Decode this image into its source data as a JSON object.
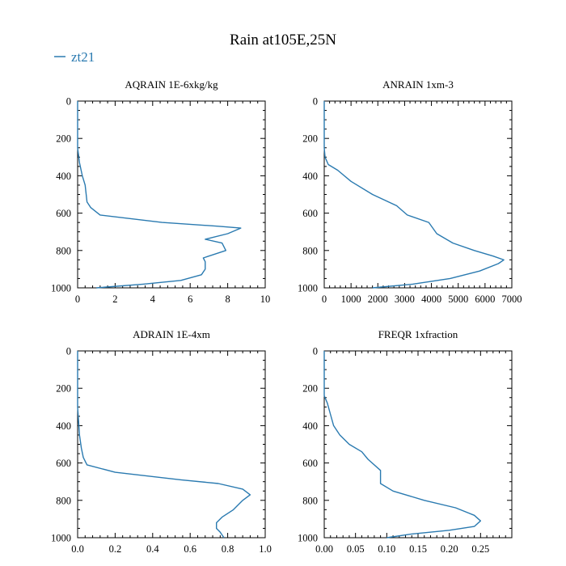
{
  "title": "Rain at105E,25N",
  "legend": {
    "label": "zt21",
    "color": "#2a7ab0"
  },
  "colors": {
    "line": "#2a7ab0",
    "axis": "#000000",
    "background": "#ffffff"
  },
  "chart_data": [
    {
      "type": "line",
      "title": "AQRAIN  1E-6xkg/kg",
      "xlim": [
        0,
        10
      ],
      "ylim": [
        1000,
        0
      ],
      "xticks": [
        0,
        2,
        4,
        6,
        8,
        10
      ],
      "xtick_labels": [
        "0",
        "2",
        "4",
        "6",
        "8",
        "10"
      ],
      "yticks": [
        0,
        200,
        400,
        600,
        800,
        1000
      ],
      "ytick_labels": [
        "0",
        "200",
        "400",
        "600",
        "800",
        "1000"
      ],
      "series": [
        {
          "name": "zt21",
          "x": [
            0,
            0,
            0.1,
            0.25,
            0.4,
            0.5,
            0.7,
            1.2,
            4.5,
            7.5,
            8.7,
            8.0,
            6.8,
            7.7,
            7.9,
            6.7,
            6.8,
            6.8,
            6.6,
            5.5,
            3.5,
            1.0
          ],
          "y": [
            0,
            250,
            330,
            400,
            450,
            540,
            570,
            610,
            650,
            670,
            680,
            710,
            740,
            760,
            800,
            840,
            860,
            900,
            930,
            960,
            980,
            1000
          ]
        }
      ]
    },
    {
      "type": "line",
      "title": "ANRAIN  1xm-3",
      "xlim": [
        0,
        7000
      ],
      "ylim": [
        1000,
        0
      ],
      "xticks": [
        0,
        1000,
        2000,
        3000,
        4000,
        5000,
        6000,
        7000
      ],
      "xtick_labels": [
        "0",
        "1000",
        "2000",
        "3000",
        "4000",
        "5000",
        "6000",
        "7000"
      ],
      "yticks": [
        0,
        200,
        400,
        600,
        800,
        1000
      ],
      "ytick_labels": [
        "0",
        "200",
        "400",
        "600",
        "800",
        "1000"
      ],
      "series": [
        {
          "name": "zt21",
          "x": [
            0,
            0,
            30,
            150,
            500,
            1000,
            1800,
            2700,
            3100,
            3900,
            4200,
            4800,
            5600,
            6300,
            6700,
            6500,
            5800,
            4700,
            3300,
            1800
          ],
          "y": [
            0,
            250,
            300,
            340,
            370,
            430,
            500,
            560,
            610,
            650,
            710,
            760,
            800,
            830,
            850,
            870,
            910,
            950,
            980,
            1000
          ]
        }
      ]
    },
    {
      "type": "line",
      "title": "ADRAIN  1E-4xm",
      "xlim": [
        0,
        1.0
      ],
      "ylim": [
        1000,
        0
      ],
      "xticks": [
        0,
        0.2,
        0.4,
        0.6,
        0.8,
        1.0
      ],
      "xtick_labels": [
        "0.0",
        "0.2",
        "0.4",
        "0.6",
        "0.8",
        "1.0"
      ],
      "yticks": [
        0,
        200,
        400,
        600,
        800,
        1000
      ],
      "ytick_labels": [
        "0",
        "200",
        "400",
        "600",
        "800",
        "1000"
      ],
      "series": [
        {
          "name": "zt21",
          "x": [
            0,
            0,
            0.01,
            0.02,
            0.03,
            0.05,
            0.2,
            0.55,
            0.75,
            0.88,
            0.92,
            0.88,
            0.83,
            0.77,
            0.74,
            0.74,
            0.76,
            0.78
          ],
          "y": [
            0,
            300,
            450,
            520,
            570,
            610,
            650,
            690,
            710,
            740,
            770,
            800,
            850,
            890,
            920,
            950,
            970,
            1000
          ]
        }
      ]
    },
    {
      "type": "line",
      "title": "FREQR  1xfraction",
      "xlim": [
        0,
        0.3
      ],
      "ylim": [
        1000,
        0
      ],
      "xticks": [
        0,
        0.05,
        0.1,
        0.15,
        0.2,
        0.25
      ],
      "xtick_labels": [
        "0.00",
        "0.05",
        "0.10",
        "0.15",
        "0.20",
        "0.25"
      ],
      "yticks": [
        0,
        200,
        400,
        600,
        800,
        1000
      ],
      "ytick_labels": [
        "0",
        "200",
        "400",
        "600",
        "800",
        "1000"
      ],
      "series": [
        {
          "name": "zt21",
          "x": [
            0,
            0,
            0.005,
            0.01,
            0.015,
            0.025,
            0.04,
            0.06,
            0.07,
            0.09,
            0.09,
            0.11,
            0.16,
            0.21,
            0.24,
            0.25,
            0.24,
            0.2,
            0.14,
            0.1
          ],
          "y": [
            0,
            240,
            280,
            340,
            400,
            450,
            500,
            540,
            580,
            640,
            710,
            750,
            800,
            840,
            880,
            910,
            940,
            960,
            980,
            1000
          ]
        }
      ]
    }
  ]
}
